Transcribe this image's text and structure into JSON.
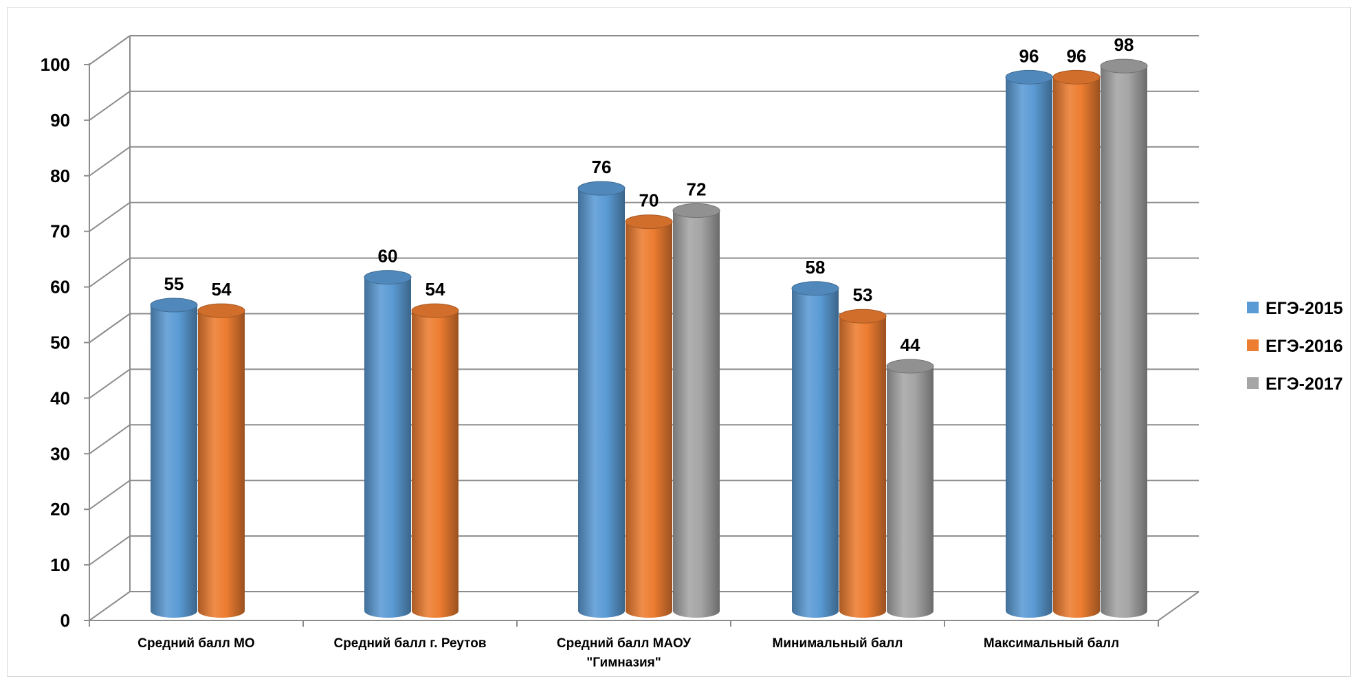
{
  "chart_data": {
    "type": "bar",
    "style": "3d-cylinder",
    "title": "",
    "xlabel": "",
    "ylabel": "",
    "ylim": [
      0,
      100
    ],
    "yticks": [
      0,
      10,
      20,
      30,
      40,
      50,
      60,
      70,
      80,
      90,
      100
    ],
    "grid": true,
    "legend_position": "right",
    "categories": [
      "Средний балл МО",
      "Средний балл г. Реутов",
      "Средний балл МАОУ \"Гимназия\"",
      "Минимальный балл",
      "Максимальный балл"
    ],
    "series": [
      {
        "name": "ЕГЭ-2015",
        "color": "#5b9bd5",
        "values": [
          55,
          60,
          76,
          58,
          96
        ]
      },
      {
        "name": "ЕГЭ-2016",
        "color": "#ed7d31",
        "values": [
          54,
          54,
          70,
          53,
          96
        ]
      },
      {
        "name": "ЕГЭ-2017",
        "color": "#a5a5a5",
        "values": [
          null,
          null,
          72,
          44,
          98
        ]
      }
    ]
  }
}
